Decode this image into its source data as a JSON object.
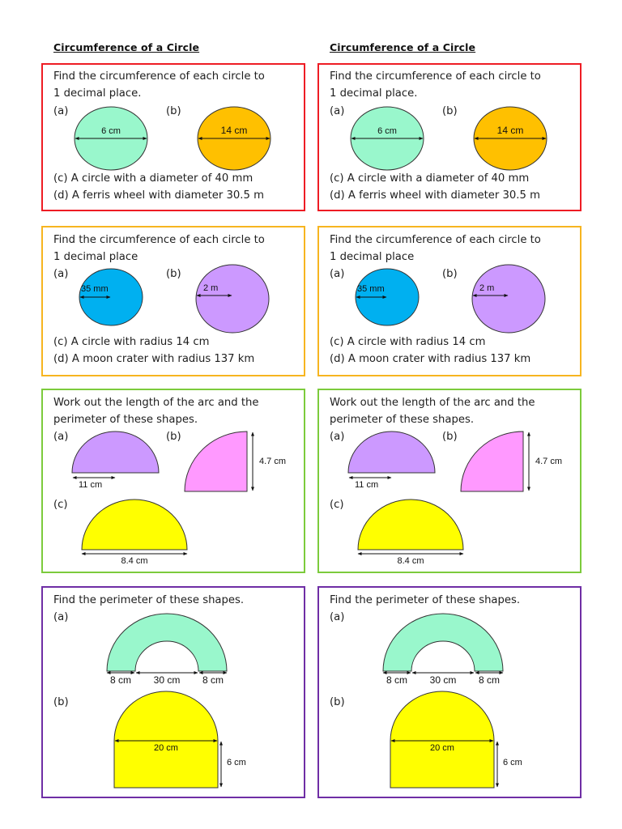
{
  "worksheet": {
    "columns": [
      "left",
      "right"
    ],
    "title": "Circumference of a Circle",
    "sections": [
      {
        "id": "circumference-diameter",
        "border_color": "#ee1c24",
        "instruction_line1": "Find the circumference of each circle to",
        "instruction_line2": "1 decimal place.",
        "label_a": "(a)",
        "label_b": "(b)",
        "figure_a": {
          "shape": "circle",
          "fill": "#99f7cc",
          "measure": "diameter",
          "value": "6 cm"
        },
        "figure_b": {
          "shape": "circle",
          "fill": "#ffc000",
          "measure": "diameter",
          "value": "14 cm"
        },
        "question_c": "(c) A circle with a diameter of 40 mm",
        "question_d": "(d) A ferris wheel with diameter 30.5 m"
      },
      {
        "id": "circumference-radius",
        "border_color": "#f7b520",
        "instruction_line1": "Find the circumference of each circle to",
        "instruction_line2": "1 decimal place",
        "label_a": "(a)",
        "label_b": "(b)",
        "figure_a": {
          "shape": "circle",
          "fill": "#00b0f0",
          "measure": "radius",
          "value": "35 mm"
        },
        "figure_b": {
          "shape": "circle",
          "fill": "#cc99ff",
          "measure": "radius",
          "value": "2 m"
        },
        "question_c": "(c) A circle with radius 14 cm",
        "question_d": "(d) A moon crater with radius 137 km"
      },
      {
        "id": "arc-length",
        "border_color": "#7ccb3c",
        "instruction_line1": "Work out the length of the arc and the",
        "instruction_line2": "perimeter of these shapes.",
        "label_a": "(a)",
        "label_b": "(b)",
        "label_c": "(c)",
        "figure_a": {
          "shape": "semicircle",
          "fill": "#cc99ff",
          "measure": "radius",
          "value": "11 cm"
        },
        "figure_b": {
          "shape": "quarter-circle",
          "fill": "#ff99ff",
          "measure": "radius",
          "value": "4.7 cm"
        },
        "figure_c": {
          "shape": "semicircle",
          "fill": "#ffff00",
          "measure": "diameter",
          "value": "8.4 cm"
        }
      },
      {
        "id": "compound-perimeter",
        "border_color": "#6f2ea5",
        "instruction_line1": "Find the perimeter of these shapes.",
        "label_a": "(a)",
        "label_b": "(b)",
        "figure_a": {
          "shape": "semi-annulus",
          "fill": "#99f7cc",
          "left_width": "8 cm",
          "inner_diameter": "30 cm",
          "right_width": "8 cm"
        },
        "figure_b": {
          "shape": "semicircle-on-rectangle",
          "fill": "#ffff00",
          "width": "20 cm",
          "height": "6 cm"
        }
      }
    ]
  }
}
